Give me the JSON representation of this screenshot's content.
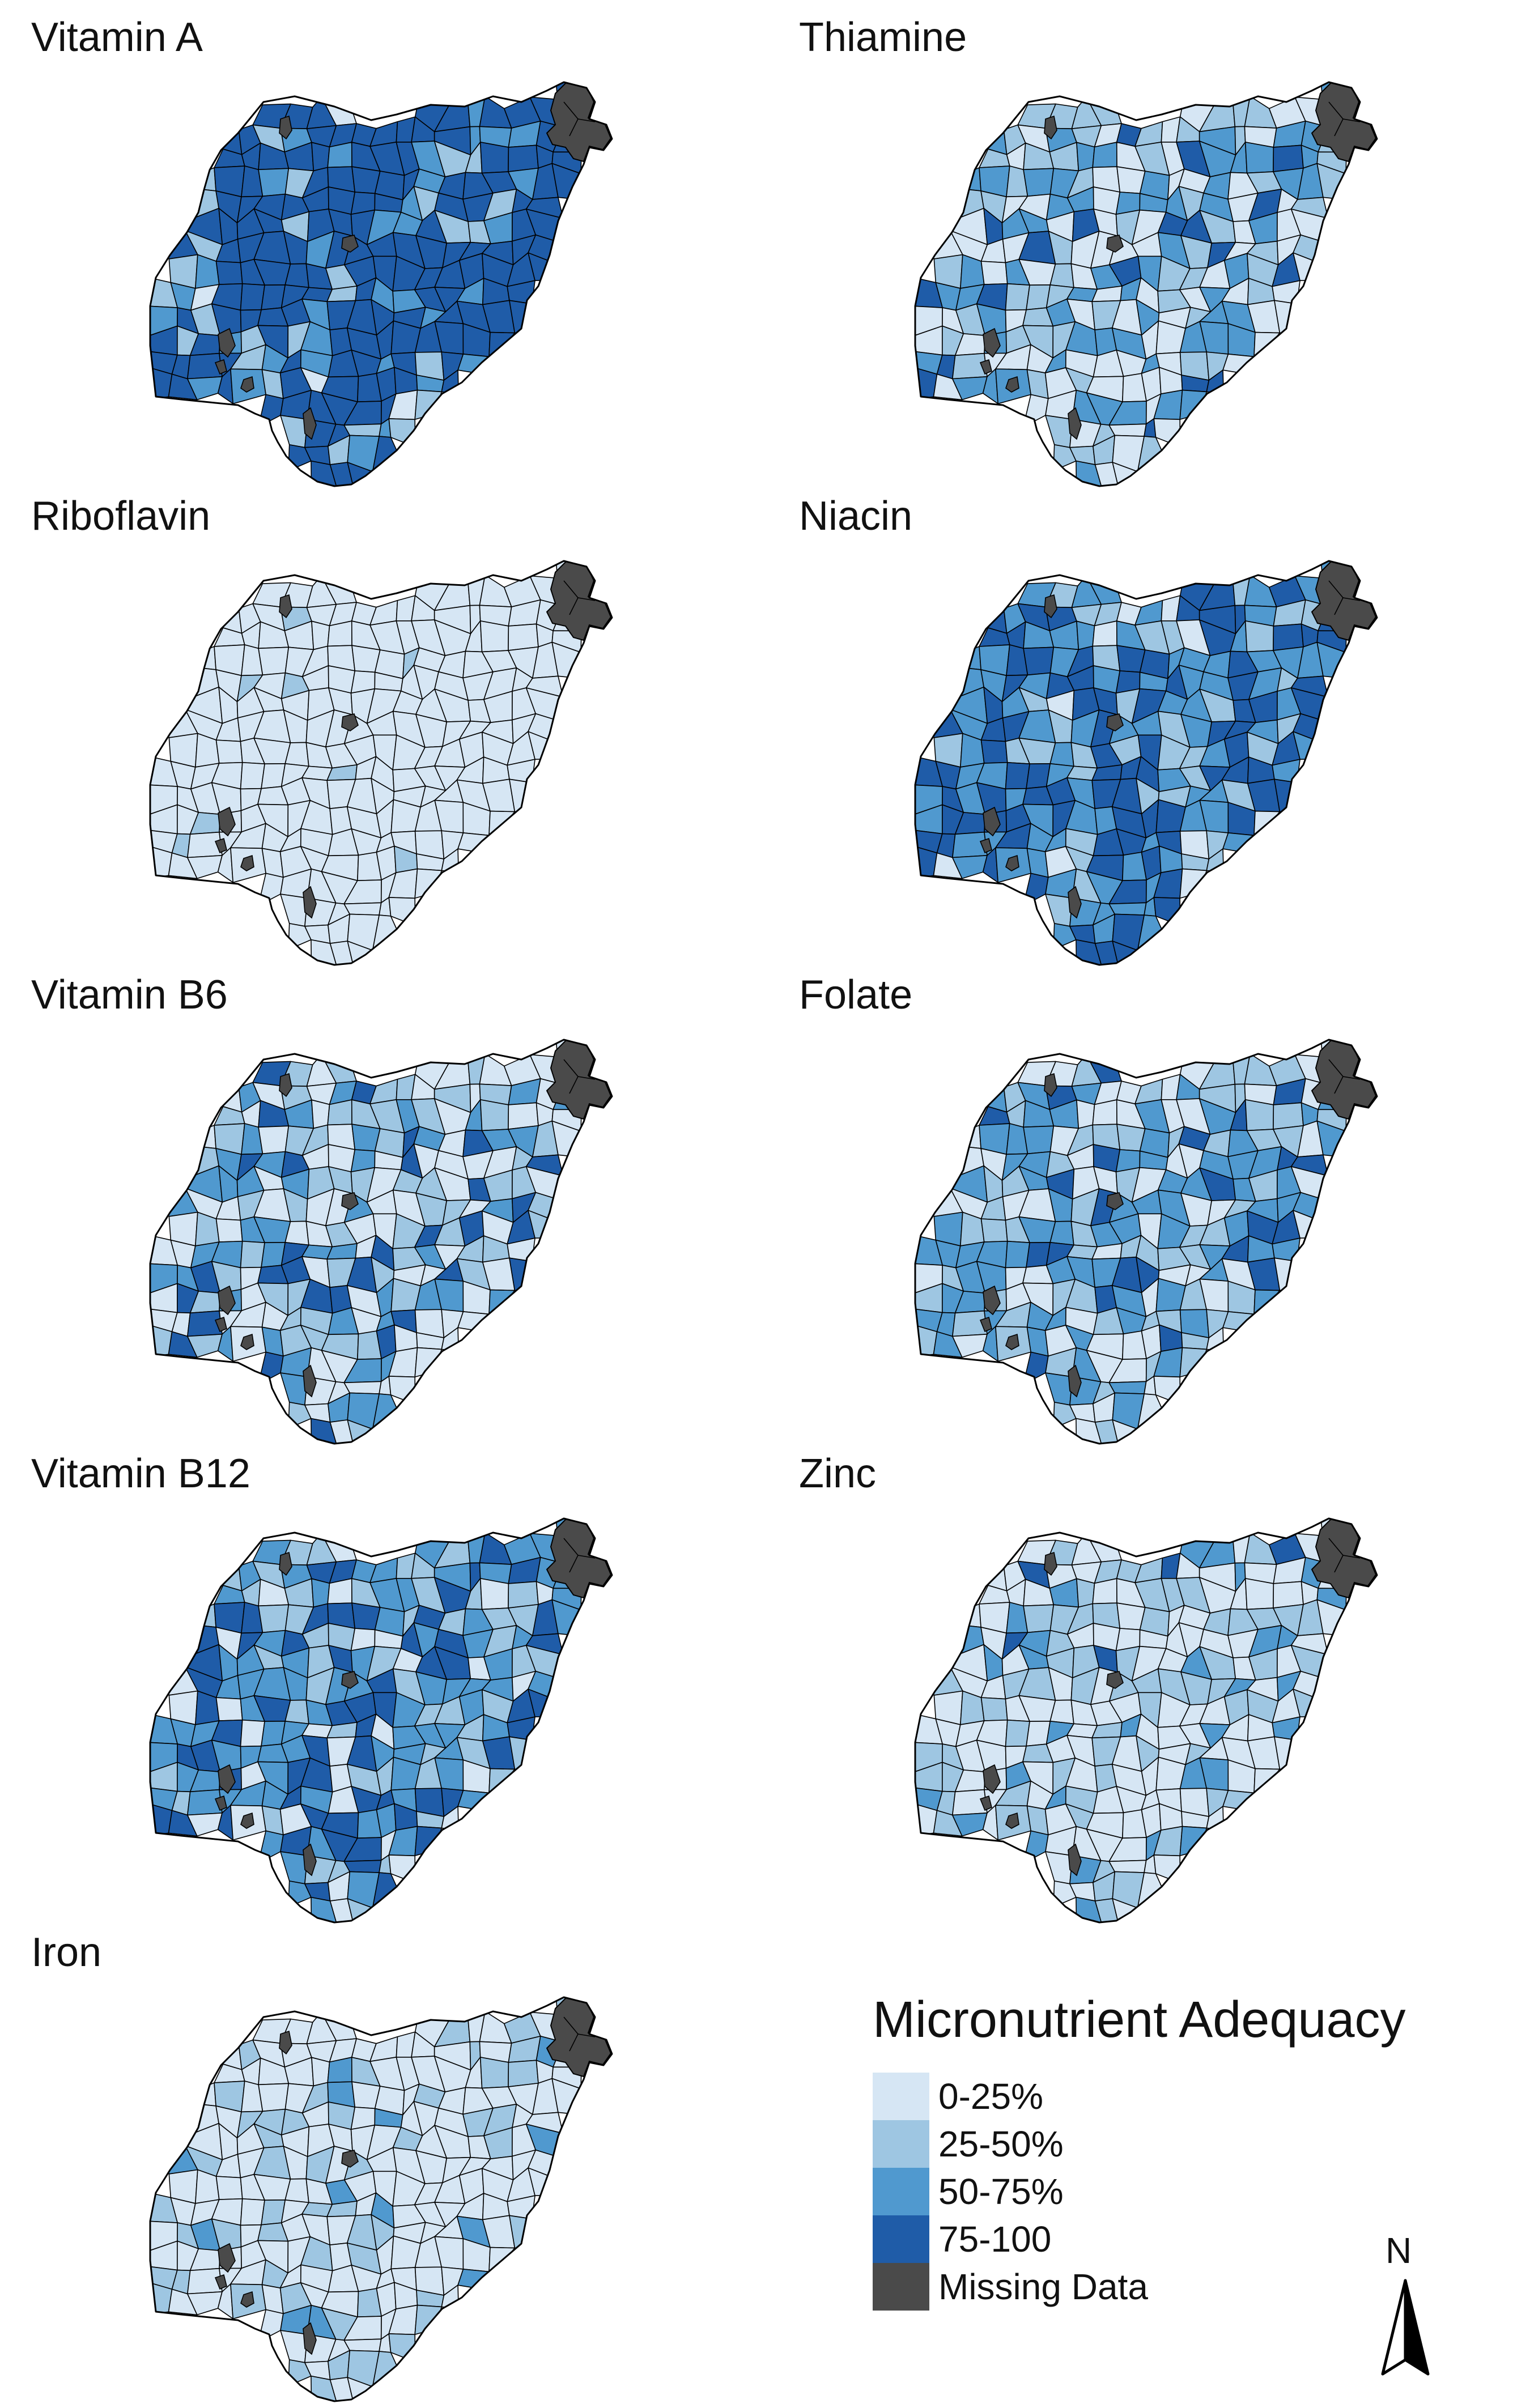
{
  "legend": {
    "title": "Micronutrient Adequacy",
    "items": [
      {
        "label": "0-25%",
        "color": "#d6e6f4"
      },
      {
        "label": "25-50%",
        "color": "#9ec6e2"
      },
      {
        "label": "50-75%",
        "color": "#5099cf"
      },
      {
        "label": "75-100",
        "color": "#1f5ca8"
      },
      {
        "label": "Missing Data",
        "color": "#4a4a4a"
      }
    ]
  },
  "north_arrow": {
    "label": "N"
  },
  "maps": [
    {
      "title": "Vitamin A",
      "dominant": "75-100",
      "palette_weights": [
        0.02,
        0.08,
        0.15,
        0.75
      ]
    },
    {
      "title": "Thiamine",
      "dominant": "0-25%",
      "palette_weights": [
        0.4,
        0.3,
        0.24,
        0.06
      ]
    },
    {
      "title": "Riboflavin",
      "dominant": "0-25%",
      "palette_weights": [
        0.97,
        0.03,
        0.0,
        0.0
      ]
    },
    {
      "title": "Niacin",
      "dominant": "75-100",
      "palette_weights": [
        0.05,
        0.15,
        0.35,
        0.45
      ]
    },
    {
      "title": "Vitamin B6",
      "dominant": "0-25%",
      "palette_weights": [
        0.38,
        0.3,
        0.22,
        0.1
      ]
    },
    {
      "title": "Folate",
      "dominant": "0-25%",
      "palette_weights": [
        0.3,
        0.3,
        0.3,
        0.1
      ]
    },
    {
      "title": "Vitamin B12",
      "dominant": "50-75%",
      "palette_weights": [
        0.15,
        0.25,
        0.35,
        0.25
      ]
    },
    {
      "title": "Zinc",
      "dominant": "0-25%",
      "palette_weights": [
        0.55,
        0.3,
        0.12,
        0.03
      ]
    },
    {
      "title": "Iron",
      "dominant": "0-25%",
      "palette_weights": [
        0.7,
        0.25,
        0.05,
        0.0
      ]
    }
  ]
}
